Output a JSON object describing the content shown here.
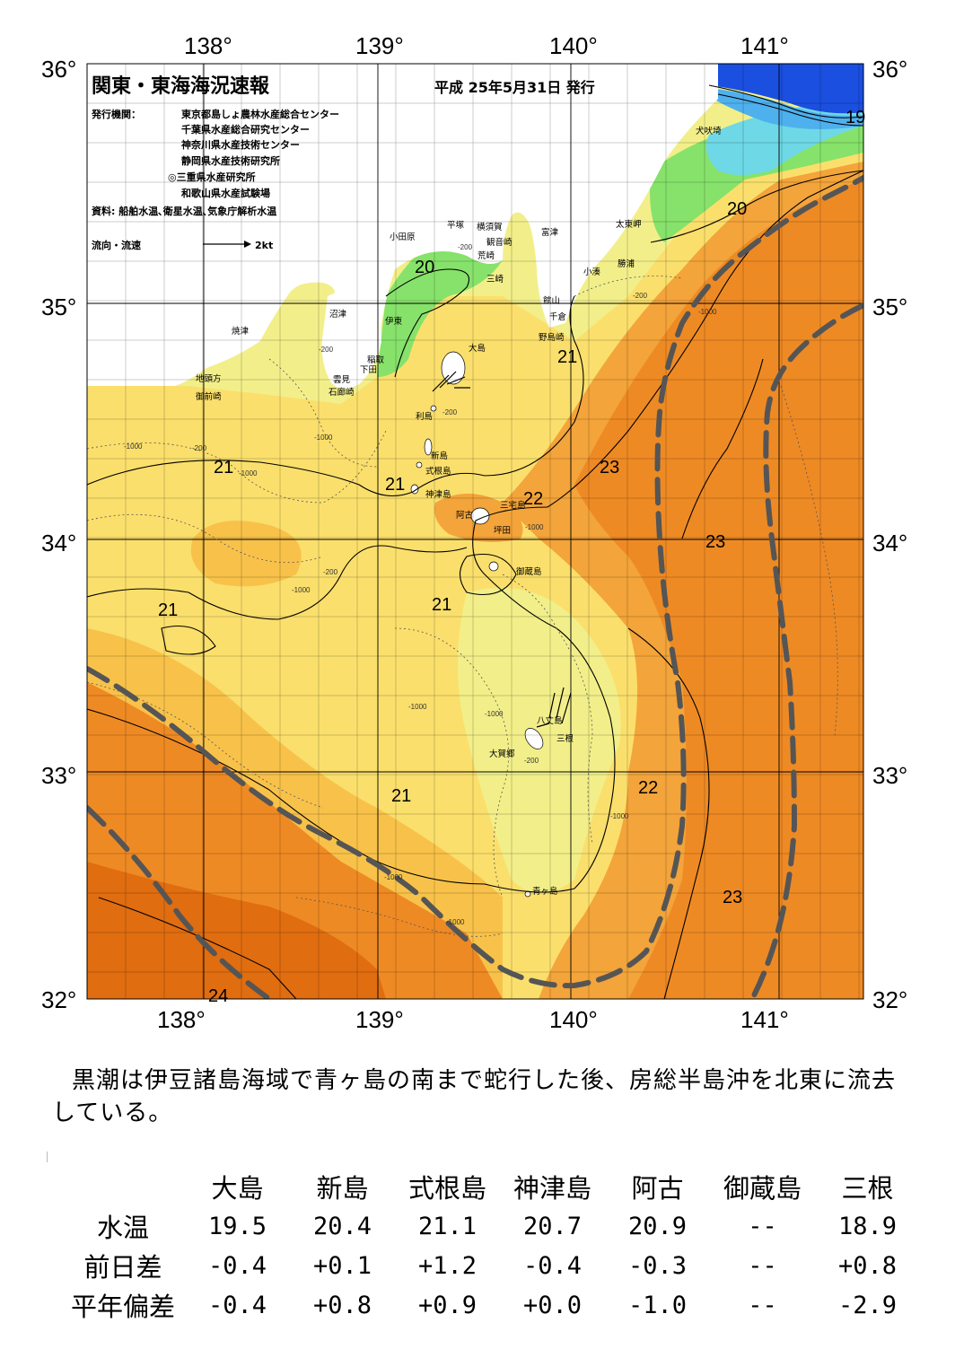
{
  "header": {
    "title": "関東・東海海況速報",
    "date": "平成 25年5月31日 発行",
    "issuer_label": "発行機関：",
    "issuers": [
      "東京都島しょ農林水産総合センター",
      "千葉県水産総合研究センター",
      "神奈川県水産技術センター",
      "静岡県水産技術研究所",
      "◎三重県水産研究所",
      "和歌山県水産試験場"
    ],
    "sources": "資料: 船舶水温､衛星水温､気象庁解析水温",
    "flow_legend_label": "流向・流速",
    "flow_legend_value": "2kt"
  },
  "axes": {
    "lon_labels": [
      "138°",
      "139°",
      "140°",
      "141°"
    ],
    "lat_labels": [
      "36°",
      "35°",
      "34°",
      "33°",
      "32°"
    ]
  },
  "isotherm_labels": [
    "19",
    "20",
    "20",
    "21",
    "21",
    "21",
    "21",
    "21",
    "21",
    "22",
    "22",
    "23",
    "23",
    "23",
    "24"
  ],
  "places": {
    "inubosaki": "犬吠埼",
    "taitomisaki": "太東岬",
    "katsuura": "勝浦",
    "kominato": "小湊",
    "tomitsu": "富津",
    "yokosuka": "横須賀",
    "kannonzaki": "観音崎",
    "arasaki": "荒崎",
    "misaki": "三崎",
    "hiratsuka": "平塚",
    "odawara": "小田原",
    "tateyama": "館山",
    "chikura": "千倉",
    "nojimazaki": "野島崎",
    "numazu": "沼津",
    "ito": "伊東",
    "yaizu": "焼津",
    "inatori": "稲取",
    "shimoda": "下田",
    "kumomi": "雲見",
    "irozaki": "石廊崎",
    "jitokata": "地頭方",
    "omaezaki": "御前崎",
    "oshima": "大島",
    "toshima": "利島",
    "niijima": "新島",
    "shikinejima": "式根島",
    "kozushima": "神津島",
    "ako": "阿古",
    "miyakejima": "三宅島",
    "tsubota": "坪田",
    "mikurajima": "御蔵島",
    "hachijojima": "八丈島",
    "mine": "三根",
    "okago": "大賀郷",
    "aogashima": "青ヶ島"
  },
  "depth_labels": [
    "-200",
    "-1000"
  ],
  "summary": "黒潮は伊豆諸島海域で青ヶ島の南まで蛇行した後、房総半島沖を北東に流去している。",
  "table": {
    "stations": [
      "大島",
      "新島",
      "式根島",
      "神津島",
      "阿古",
      "御蔵島",
      "三根"
    ],
    "rows": [
      {
        "label": "水温",
        "values": [
          "19.5",
          "20.4",
          "21.1",
          "20.7",
          "20.9",
          "--",
          "18.9"
        ]
      },
      {
        "label": "前日差",
        "values": [
          "-0.4",
          "+0.1",
          "+1.2",
          "-0.4",
          "-0.3",
          "--",
          "+0.8"
        ]
      },
      {
        "label": "平年偏差",
        "values": [
          "-0.4",
          "+0.8",
          "+0.9",
          "+0.0",
          "-1.0",
          "--",
          "-2.9"
        ]
      }
    ]
  },
  "colors": {
    "water_19": "#6fd8e6",
    "water_20": "#86e26a",
    "water_20_5": "#f2ef8a",
    "water_21": "#fbdf6c",
    "water_21_5": "#f8c24a",
    "water_22": "#f3a43a",
    "water_23": "#ee8a24",
    "water_24": "#e06d10",
    "cold_core": "#1a4fe0",
    "kuroshio_axis": "#555555",
    "land": "#ffffff"
  }
}
